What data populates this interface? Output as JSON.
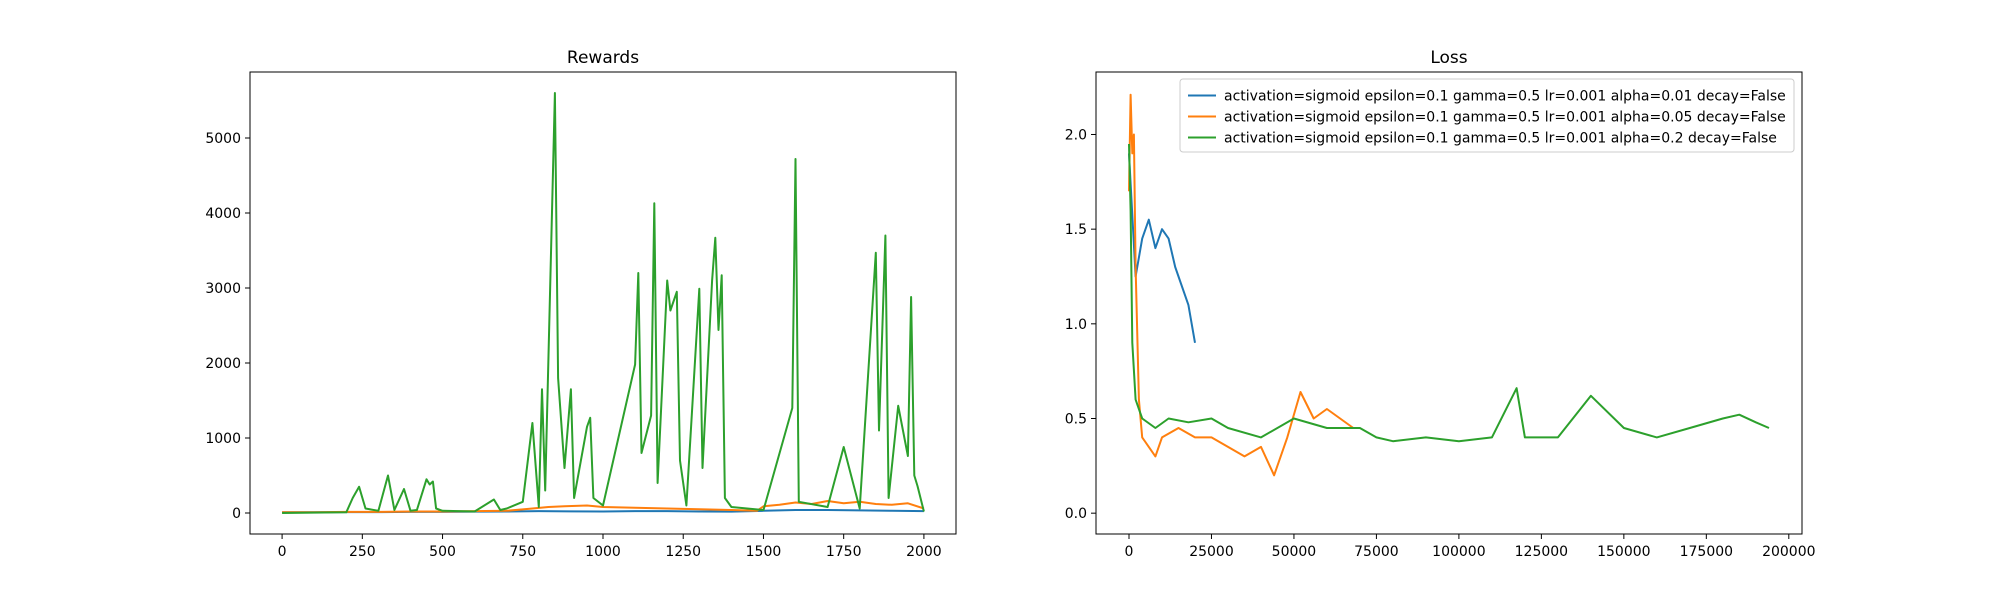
{
  "chart_data": [
    {
      "type": "line",
      "title": "Rewards",
      "xlabel": "",
      "ylabel": "",
      "xlim": [
        -100,
        2100
      ],
      "ylim": [
        -280,
        5880
      ],
      "xticks": [
        0,
        250,
        500,
        750,
        1000,
        1250,
        1500,
        1750,
        2000
      ],
      "xtick_labels": [
        "0",
        "250",
        "500",
        "750",
        "1000",
        "1250",
        "1500",
        "1750",
        "2000"
      ],
      "yticks": [
        0,
        1000,
        2000,
        3000,
        4000,
        5000
      ],
      "ytick_labels": [
        "0",
        "1000",
        "2000",
        "3000",
        "4000",
        "5000"
      ],
      "grid": false,
      "legend": "none",
      "series": [
        {
          "color": "#1f77b4",
          "x": [
            0,
            100,
            200,
            300,
            400,
            500,
            600,
            700,
            800,
            900,
            1000,
            1100,
            1200,
            1300,
            1400,
            1500,
            1600,
            1700,
            1800,
            1900,
            2000
          ],
          "y": [
            10,
            10,
            12,
            12,
            15,
            15,
            18,
            20,
            25,
            22,
            20,
            25,
            25,
            20,
            18,
            30,
            40,
            40,
            35,
            30,
            25
          ]
        },
        {
          "color": "#ff7f0e",
          "x": [
            0,
            100,
            200,
            300,
            400,
            500,
            600,
            700,
            780,
            830,
            880,
            950,
            1000,
            1100,
            1200,
            1300,
            1400,
            1480,
            1500,
            1550,
            1600,
            1650,
            1700,
            1750,
            1800,
            1850,
            1900,
            1950,
            2000
          ],
          "y": [
            10,
            10,
            15,
            15,
            20,
            20,
            25,
            30,
            60,
            80,
            90,
            100,
            80,
            70,
            60,
            50,
            40,
            30,
            90,
            110,
            140,
            120,
            160,
            130,
            150,
            120,
            110,
            130,
            60
          ]
        },
        {
          "color": "#2ca02c",
          "x": [
            0,
            200,
            220,
            240,
            260,
            300,
            330,
            350,
            380,
            400,
            420,
            450,
            460,
            470,
            480,
            500,
            600,
            660,
            680,
            700,
            750,
            780,
            800,
            810,
            820,
            840,
            850,
            860,
            880,
            900,
            910,
            950,
            960,
            970,
            1000,
            1100,
            1110,
            1120,
            1150,
            1160,
            1170,
            1200,
            1210,
            1230,
            1240,
            1260,
            1300,
            1310,
            1340,
            1350,
            1360,
            1370,
            1380,
            1400,
            1500,
            1590,
            1600,
            1610,
            1700,
            1750,
            1800,
            1850,
            1860,
            1880,
            1890,
            1920,
            1950,
            1960,
            1970,
            1980,
            2000
          ],
          "y": [
            0,
            10,
            200,
            350,
            60,
            30,
            500,
            40,
            320,
            30,
            40,
            450,
            380,
            420,
            60,
            30,
            20,
            180,
            40,
            60,
            150,
            1200,
            80,
            1650,
            300,
            3850,
            5600,
            1800,
            600,
            1650,
            200,
            1150,
            1270,
            200,
            100,
            1980,
            3200,
            800,
            1300,
            4130,
            400,
            3100,
            2700,
            2950,
            700,
            100,
            2990,
            600,
            3100,
            3670,
            2440,
            3170,
            200,
            80,
            40,
            1400,
            4720,
            150,
            80,
            880,
            60,
            3470,
            1100,
            3700,
            200,
            1430,
            760,
            2880,
            500,
            360,
            20
          ]
        }
      ]
    },
    {
      "type": "line",
      "title": "Loss",
      "xlabel": "",
      "ylabel": "",
      "xlim": [
        -10000,
        204000
      ],
      "ylim": [
        -0.11,
        2.33
      ],
      "xticks": [
        0,
        25000,
        50000,
        75000,
        100000,
        125000,
        150000,
        175000,
        200000
      ],
      "xtick_labels": [
        "0",
        "25000",
        "50000",
        "75000",
        "100000",
        "125000",
        "150000",
        "175000",
        "200000"
      ],
      "yticks": [
        0.0,
        0.5,
        1.0,
        1.5,
        2.0
      ],
      "ytick_labels": [
        "0.0",
        "0.5",
        "1.0",
        "1.5",
        "2.0"
      ],
      "grid": false,
      "legend": "top-right",
      "series": [
        {
          "name": "activation=sigmoid epsilon=0.1 gamma=0.5 lr=0.001 alpha=0.01 decay=False",
          "color": "#1f77b4",
          "x": [
            0,
            2000,
            4000,
            6000,
            8000,
            10000,
            12000,
            14000,
            16000,
            18000,
            20000
          ],
          "y": [
            1.9,
            1.25,
            1.45,
            1.55,
            1.4,
            1.5,
            1.45,
            1.3,
            1.2,
            1.1,
            0.9
          ]
        },
        {
          "name": "activation=sigmoid epsilon=0.1 gamma=0.5 lr=0.001 alpha=0.05 decay=False",
          "color": "#ff7f0e",
          "x": [
            0,
            500,
            1000,
            1500,
            2000,
            3000,
            4000,
            6000,
            8000,
            10000,
            15000,
            20000,
            25000,
            30000,
            35000,
            40000,
            44000,
            48000,
            52000,
            56000,
            60000,
            64000,
            68000
          ],
          "y": [
            1.7,
            2.21,
            1.9,
            2.0,
            1.3,
            0.6,
            0.4,
            0.35,
            0.3,
            0.4,
            0.45,
            0.4,
            0.4,
            0.35,
            0.3,
            0.35,
            0.2,
            0.4,
            0.64,
            0.5,
            0.55,
            0.5,
            0.45
          ]
        },
        {
          "name": "activation=sigmoid epsilon=0.1 gamma=0.5 lr=0.001 alpha=0.2 decay=False",
          "color": "#2ca02c",
          "x": [
            0,
            500,
            1000,
            2000,
            4000,
            8000,
            12000,
            18000,
            25000,
            30000,
            40000,
            50000,
            60000,
            70000,
            75000,
            80000,
            90000,
            100000,
            110000,
            117500,
            120000,
            130000,
            140000,
            150000,
            160000,
            170000,
            180000,
            185000,
            190000,
            194000
          ],
          "y": [
            1.95,
            1.6,
            0.9,
            0.6,
            0.5,
            0.45,
            0.5,
            0.48,
            0.5,
            0.45,
            0.4,
            0.5,
            0.45,
            0.45,
            0.4,
            0.38,
            0.4,
            0.38,
            0.4,
            0.66,
            0.4,
            0.4,
            0.62,
            0.45,
            0.4,
            0.45,
            0.5,
            0.52,
            0.48,
            0.45
          ]
        }
      ]
    }
  ]
}
